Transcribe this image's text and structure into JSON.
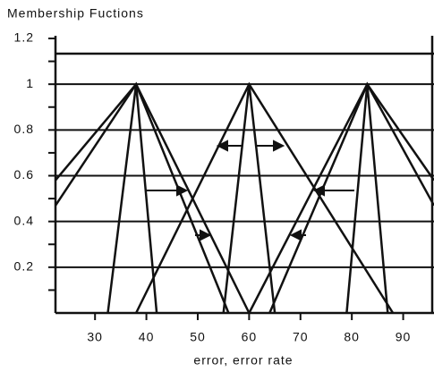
{
  "chart_data": {
    "type": "line",
    "title": "Membership Fuctions",
    "x_label": "error, error rate",
    "xlim": [
      22.3,
      96
    ],
    "ylim": [
      0,
      1.2
    ],
    "xticks": [
      30,
      40,
      50,
      60,
      70,
      80,
      90
    ],
    "yticks": [
      0.2,
      0.4,
      0.6,
      0.8,
      1,
      1.2
    ],
    "grid": true,
    "color": "#111111",
    "series": [
      {
        "x": [
          32.5,
          38,
          42
        ],
        "values": [
          0,
          1,
          0
        ]
      },
      {
        "x": [
          22.3,
          38,
          56
        ],
        "values": [
          0.47,
          1,
          0
        ]
      },
      {
        "x": [
          22.3,
          38,
          60
        ],
        "values": [
          0.58,
          1,
          0
        ]
      },
      {
        "x": [
          38,
          60,
          88
        ],
        "values": [
          0,
          1,
          0
        ]
      },
      {
        "x": [
          55,
          60,
          65
        ],
        "values": [
          0,
          1,
          0
        ]
      },
      {
        "x": [
          60,
          83,
          96
        ],
        "values": [
          0,
          1,
          0.47
        ]
      },
      {
        "x": [
          64,
          83,
          96
        ],
        "values": [
          0,
          1,
          0.58
        ]
      },
      {
        "x": [
          79,
          83,
          87
        ],
        "values": [
          0,
          1,
          0
        ]
      }
    ]
  }
}
